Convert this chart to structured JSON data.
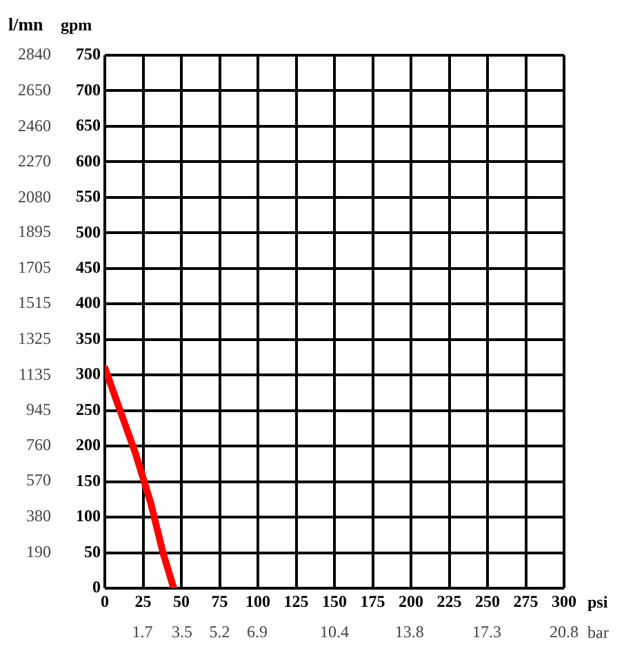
{
  "chart_data": {
    "type": "line",
    "xlabel": "psi",
    "x2label": "bar",
    "ylabel": "gpm",
    "y2label": "l/mn",
    "series": [
      {
        "color": "#ff0000",
        "x": [
          0,
          10,
          20,
          30,
          38,
          45
        ],
        "values": [
          310,
          250,
          190,
          120,
          50,
          0
        ]
      }
    ],
    "xlim": [
      0,
      300
    ],
    "xticks": [
      0,
      25,
      50,
      75,
      100,
      125,
      150,
      175,
      200,
      225,
      250,
      275,
      300
    ],
    "x2lim": [
      0,
      20.8
    ],
    "x2ticks": [
      1.7,
      3.5,
      5.2,
      6.9,
      10.4,
      13.8,
      17.3,
      20.8
    ],
    "ylim": [
      0,
      750
    ],
    "yticks": [
      0,
      50,
      100,
      150,
      200,
      250,
      300,
      350,
      400,
      450,
      500,
      550,
      600,
      650,
      700,
      750
    ],
    "y2lim": [
      0,
      2840
    ],
    "y2ticks": [
      190,
      380,
      570,
      760,
      945,
      1135,
      1325,
      1515,
      1705,
      1895,
      2080,
      2270,
      2460,
      2650,
      2840
    ],
    "grid": true,
    "legend": false,
    "marker": "none",
    "line_style": "solid"
  }
}
